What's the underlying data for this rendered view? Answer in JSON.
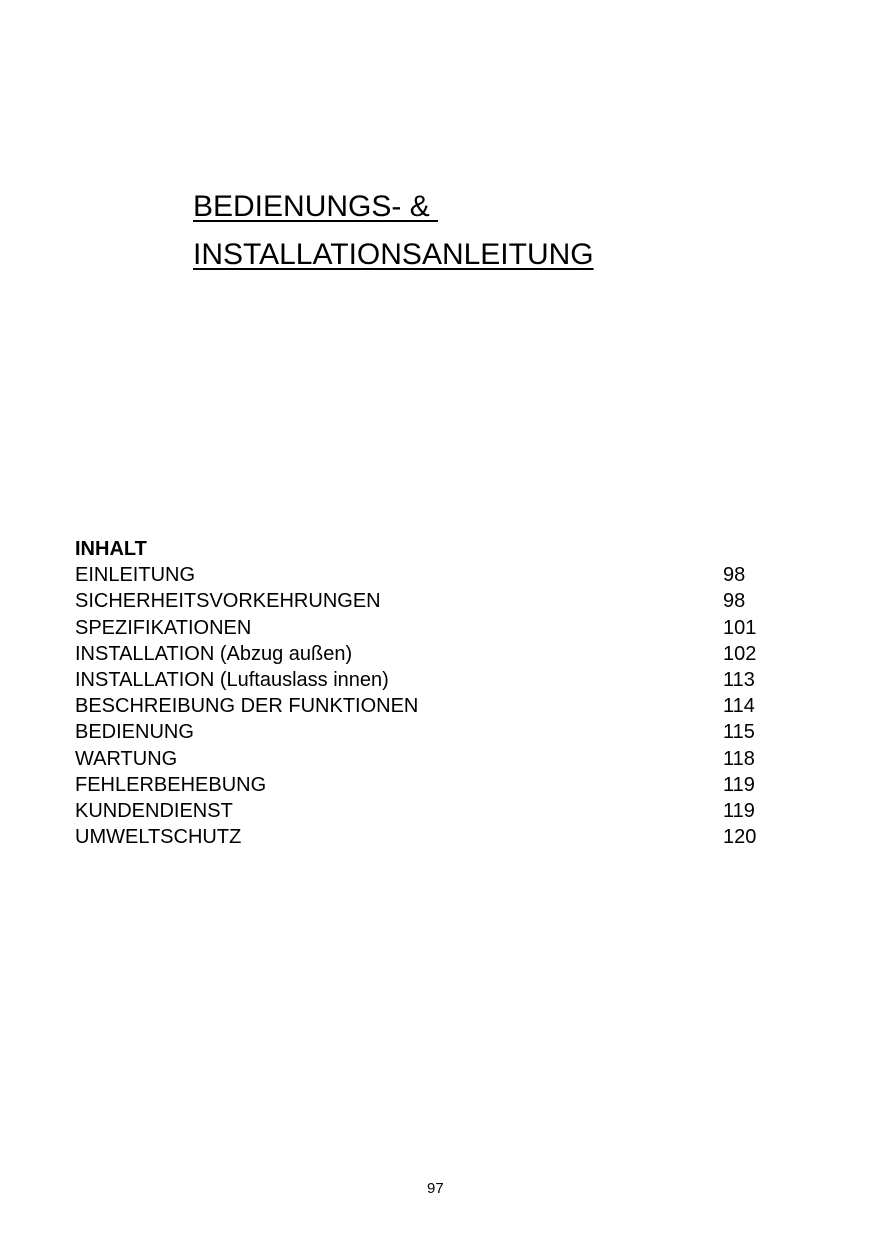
{
  "title": {
    "line1": "BEDIENUNGS- & ",
    "line2": "INSTALLATIONSANLEITUNG"
  },
  "toc": {
    "heading": "INHALT",
    "entries": [
      {
        "label": "EINLEITUNG",
        "page": "98"
      },
      {
        "label": "SICHERHEITSVORKEHRUNGEN",
        "page": "98"
      },
      {
        "label": "SPEZIFIKATIONEN",
        "page": "101"
      },
      {
        "label": "INSTALLATION (Abzug außen)",
        "page": "102"
      },
      {
        "label": "INSTALLATION (Luftauslass innen)",
        "page": "113"
      },
      {
        "label": "BESCHREIBUNG DER FUNKTIONEN",
        "page": "114"
      },
      {
        "label": "BEDIENUNG",
        "page": "115"
      },
      {
        "label": "WARTUNG",
        "page": "118"
      },
      {
        "label": "FEHLERBEHEBUNG",
        "page": "119"
      },
      {
        "label": "KUNDENDIENST",
        "page": "119"
      },
      {
        "label": "UMWELTSCHUTZ",
        "page": "120"
      }
    ]
  },
  "page_number": "97"
}
